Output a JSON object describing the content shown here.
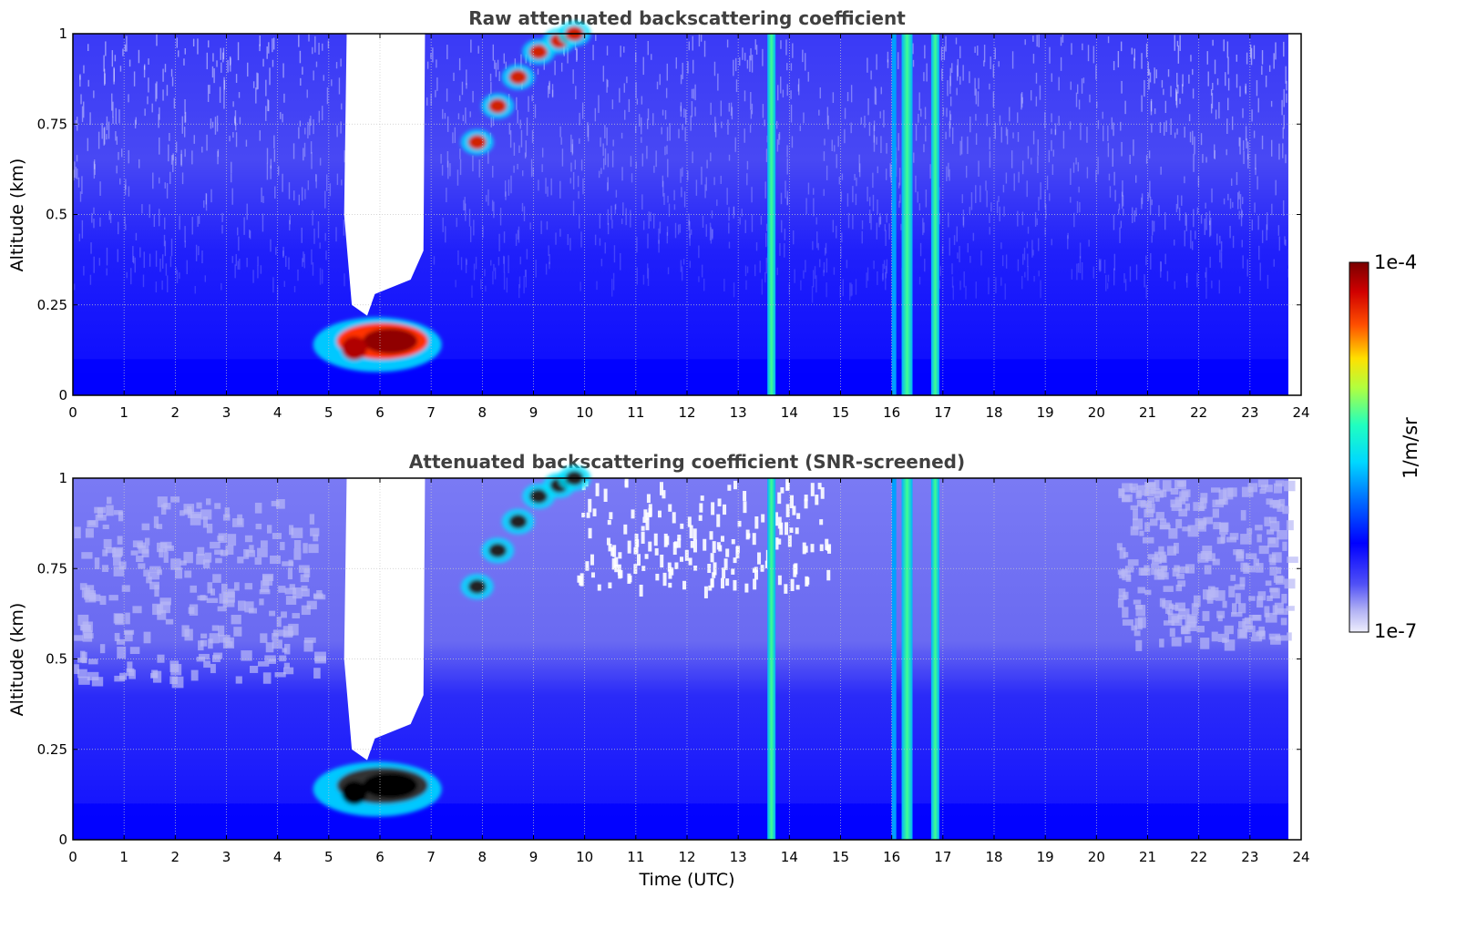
{
  "chart_data": [
    {
      "type": "heatmap",
      "title": "Raw attenuated backscattering coefficient",
      "xlabel": "",
      "ylabel": "Altitude (km)",
      "xlim": [
        0,
        24
      ],
      "ylim": [
        0,
        1
      ],
      "xticks": [
        "0",
        "1",
        "2",
        "3",
        "4",
        "5",
        "6",
        "7",
        "8",
        "9",
        "10",
        "11",
        "12",
        "13",
        "14",
        "15",
        "16",
        "17",
        "18",
        "19",
        "20",
        "21",
        "22",
        "23",
        "24"
      ],
      "yticks": [
        "0",
        "0.25",
        "0.5",
        "0.75",
        "1"
      ],
      "grid": true,
      "data_end_time": 23.75,
      "features": [
        {
          "name": "fog layer",
          "time_start": 5.0,
          "time_end": 6.85,
          "altitude_center": 0.15,
          "level": "high"
        },
        {
          "name": "clear gap",
          "time_start": 5.35,
          "time_end": 6.85,
          "altitude_bottom": 0.25,
          "level": "none"
        },
        {
          "name": "rising aerosol layer",
          "time_start": 7.9,
          "time_end": 9.8,
          "altitude_start": 0.7,
          "altitude_end": 1.0,
          "level": "high"
        },
        {
          "name": "precipitation column",
          "time_center": 13.65,
          "level": "medium"
        },
        {
          "name": "precipitation column",
          "time_center": 16.3,
          "level": "medium"
        },
        {
          "name": "precipitation column",
          "time_center": 16.85,
          "level": "medium"
        }
      ]
    },
    {
      "type": "heatmap",
      "title": "Attenuated backscattering coefficient (SNR-screened)",
      "xlabel": "Time (UTC)",
      "ylabel": "Altitude (km)",
      "xlim": [
        0,
        24
      ],
      "ylim": [
        0,
        1
      ],
      "xticks": [
        "0",
        "1",
        "2",
        "3",
        "4",
        "5",
        "6",
        "7",
        "8",
        "9",
        "10",
        "11",
        "12",
        "13",
        "14",
        "15",
        "16",
        "17",
        "18",
        "19",
        "20",
        "21",
        "22",
        "23",
        "24"
      ],
      "yticks": [
        "0",
        "0.25",
        "0.5",
        "0.75",
        "1"
      ],
      "grid": true,
      "data_end_time": 23.75
    }
  ],
  "colorbar": {
    "label": "1/m/sr",
    "max_label": "1e-4",
    "min_label": "1e-7",
    "scale": "log",
    "colormap": [
      "#e8e8fa",
      "#9090f0",
      "#0000ff",
      "#00b4ff",
      "#00ffc0",
      "#b0ff40",
      "#ffd000",
      "#ff3000",
      "#800000"
    ]
  }
}
